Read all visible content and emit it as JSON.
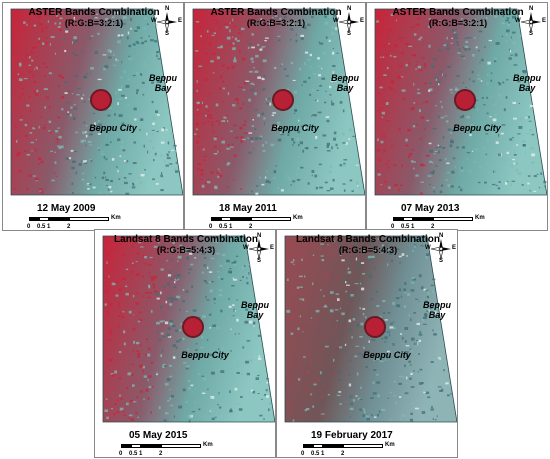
{
  "panels": [
    {
      "title": "ASTER Bands Combination",
      "subtitle": "(R:G:B=3:2:1)",
      "date": "12 May 2009",
      "city_label": "Beppu City",
      "bay_label": "Beppu\nBay"
    },
    {
      "title": "ASTER Bands Combination",
      "subtitle": "(R:G:B=3:2:1)",
      "date": "18 May 2011",
      "city_label": "Beppu City",
      "bay_label": "Beppu\nBay"
    },
    {
      "title": "ASTER Bands Combination",
      "subtitle": "(R:G:B=3:2:1)",
      "date": "07 May 2013",
      "city_label": "Beppu City",
      "bay_label": "Beppu\nBay"
    },
    {
      "title": "Landsat 8 Bands Combination",
      "subtitle": "(R:G:B=5:4:3)",
      "date": "05 May 2015",
      "city_label": "Beppu City",
      "bay_label": "Beppu\nBay"
    },
    {
      "title": "Landsat 8 Bands Combination",
      "subtitle": "(R:G:B=5:4:3)",
      "date": "19 February 2017",
      "city_label": "Beppu City",
      "bay_label": "Beppu\nBay"
    }
  ],
  "compass": {
    "n": "N",
    "s": "S",
    "e": "E",
    "w": "W"
  },
  "scalebar": {
    "unit": "Km",
    "ticks": [
      "0",
      "0.5",
      "1",
      "2"
    ]
  },
  "colors": {
    "vegetation_red": "#c8243a",
    "urban_cyan": "#7fb9b4",
    "urban_dark": "#3f6e76",
    "tone_2017": "#9a4a52"
  }
}
